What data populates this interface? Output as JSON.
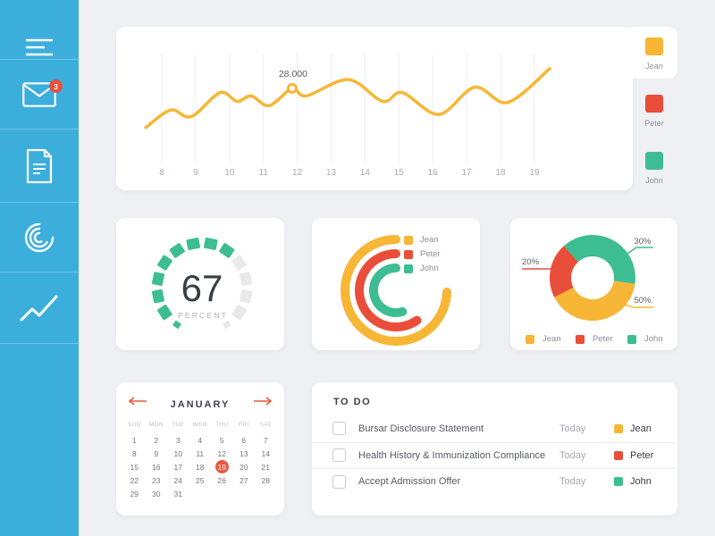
{
  "colors": {
    "accent_yellow": "#F7B636",
    "accent_red": "#E94E3B",
    "accent_green": "#3DBD92",
    "sidebar_blue": "#3CAEDC",
    "badge_red": "#E6503C",
    "calendar_accent": "#E8593F",
    "page_bg": "#EFF0F4"
  },
  "sidebar": {
    "badge_count": "3",
    "items": [
      {
        "icon": "menu-icon"
      },
      {
        "icon": "mail-icon",
        "badge": "3"
      },
      {
        "icon": "document-icon"
      },
      {
        "icon": "radial-chart-icon"
      },
      {
        "icon": "trend-line-icon"
      }
    ]
  },
  "top_legend": {
    "items": [
      {
        "label": "Jean",
        "color": "#F7B636",
        "active": true
      },
      {
        "label": "Peter",
        "color": "#E94E3B",
        "active": false
      },
      {
        "label": "John",
        "color": "#3DBD92",
        "active": false
      }
    ]
  },
  "gauge": {
    "value": "67",
    "unit": "PERCENT"
  },
  "radial_chart": {
    "legend": [
      {
        "label": "Jean",
        "color": "#F7B636"
      },
      {
        "label": "Peter",
        "color": "#E94E3B"
      },
      {
        "label": "John",
        "color": "#3DBD92"
      }
    ]
  },
  "donut_chart": {
    "legend": [
      {
        "label": "Jean",
        "color": "#F7B636"
      },
      {
        "label": "Peter",
        "color": "#E94E3B"
      },
      {
        "label": "John",
        "color": "#3DBD92"
      }
    ]
  },
  "calendar": {
    "month": "JANUARY",
    "day_headers": [
      "SUN",
      "MON",
      "TUE",
      "WED",
      "THU",
      "FRI",
      "SAT"
    ],
    "first_day_offset": 0,
    "days": [
      1,
      2,
      3,
      4,
      5,
      6,
      7,
      8,
      9,
      10,
      11,
      12,
      13,
      14,
      15,
      16,
      17,
      18,
      19,
      20,
      21,
      22,
      23,
      24,
      25,
      26,
      27,
      28,
      29,
      30,
      31
    ],
    "selected_day": 19
  },
  "todo": {
    "title": "TO DO",
    "items": [
      {
        "task": "Bursar Disclosure Statement",
        "due": "Today",
        "person": "Jean",
        "color": "#F7B636"
      },
      {
        "task": "Health History & Immunization Compliance",
        "due": "Today",
        "person": "Peter",
        "color": "#E94E3B"
      },
      {
        "task": "Accept Admission Offer",
        "due": "Today",
        "person": "John",
        "color": "#3DBD92"
      }
    ]
  },
  "chart_data": [
    {
      "type": "line",
      "title": "",
      "x_ticks": [
        "8",
        "9",
        "10",
        "11",
        "12",
        "13",
        "14",
        "15",
        "16",
        "17",
        "18",
        "19"
      ],
      "grid": "vertical",
      "legend": [
        "Jean",
        "Peter",
        "John"
      ],
      "legend_position": "right",
      "y_scale": "percent_of_plot_height",
      "series": [
        {
          "name": "Jean",
          "color": "#F7B636",
          "points": [
            [
              7.53,
              33
            ],
            [
              8.26,
              49
            ],
            [
              8.87,
              43
            ],
            [
              9.72,
              65
            ],
            [
              10.22,
              57
            ],
            [
              10.64,
              62
            ],
            [
              11.17,
              53
            ],
            [
              11.85,
              69
            ],
            [
              12.27,
              62
            ],
            [
              13.51,
              77
            ],
            [
              14.52,
              57
            ],
            [
              15.1,
              65
            ],
            [
              16.18,
              45
            ],
            [
              17.24,
              70
            ],
            [
              18.21,
              56
            ],
            [
              19.45,
              87
            ]
          ]
        }
      ],
      "annotation": {
        "x": 11.85,
        "y": 69,
        "label": "28.000"
      }
    },
    {
      "type": "gauge",
      "value": 67,
      "unit": "PERCENT",
      "segments_total": 14,
      "segments_filled": 9,
      "start_deg": -146,
      "end_deg": 146,
      "filled_color": "#3DBD92",
      "empty_color": "#E9E9EC"
    },
    {
      "type": "radial-progress",
      "start": "top",
      "direction": "counterclockwise",
      "rings": [
        {
          "name": "Jean",
          "color": "#F7B636",
          "radius": 57,
          "sweep_deg": 268
        },
        {
          "name": "Peter",
          "color": "#E94E3B",
          "radius": 41,
          "sweep_deg": 215
        },
        {
          "name": "John",
          "color": "#3DBD92",
          "radius": 25,
          "sweep_deg": 197
        }
      ]
    },
    {
      "type": "pie",
      "donut": true,
      "slices": [
        {
          "label": "Jean",
          "value": 50,
          "pct_label": "50%",
          "color": "#F7B636",
          "start_deg": 98,
          "end_deg": 243
        },
        {
          "label": "Peter",
          "value": 20,
          "pct_label": "20%",
          "color": "#E94E3B",
          "start_deg": 243,
          "end_deg": 318
        },
        {
          "label": "John",
          "value": 30,
          "pct_label": "30%",
          "color": "#3DBD92",
          "start_deg": 318,
          "end_deg": 458
        }
      ],
      "legend_position": "bottom"
    }
  ]
}
